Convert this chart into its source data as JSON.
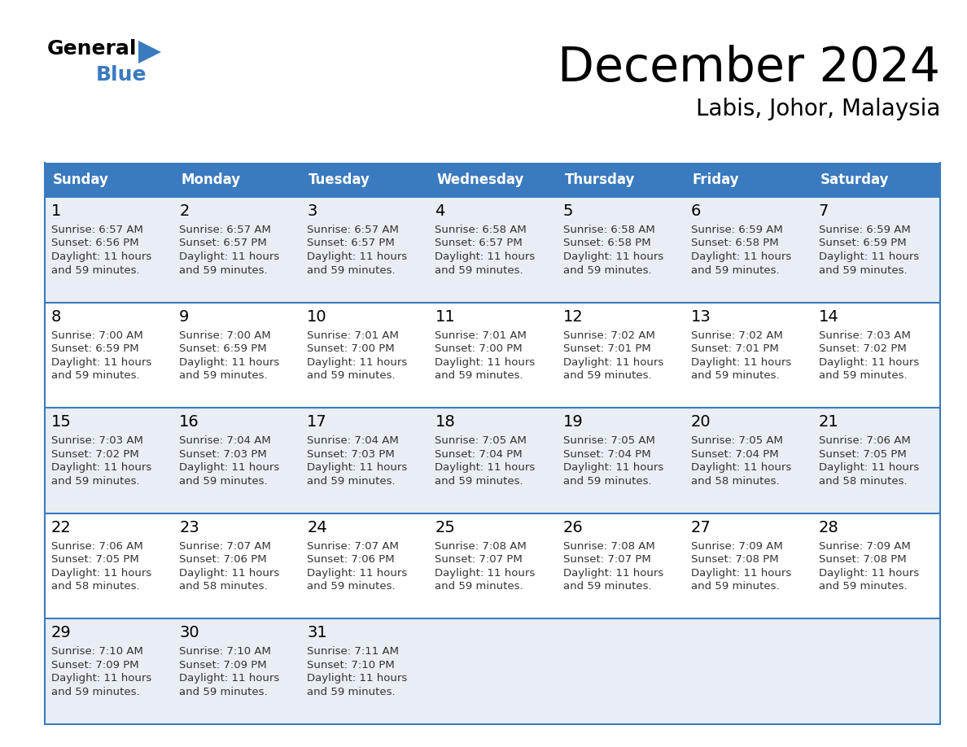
{
  "title": "December 2024",
  "subtitle": "Labis, Johor, Malaysia",
  "header_color": "#3a7abf",
  "header_text_color": "#ffffff",
  "cell_bg_even": "#e8eef4",
  "cell_bg_odd": "#ffffff",
  "border_color": "#3a7abf",
  "text_color": "#333333",
  "day_headers": [
    "Sunday",
    "Monday",
    "Tuesday",
    "Wednesday",
    "Thursday",
    "Friday",
    "Saturday"
  ],
  "days": [
    {
      "day": 1,
      "col": 0,
      "row": 0,
      "sunrise": "6:57 AM",
      "sunset": "6:56 PM",
      "daylight": "11 hours and 59 minutes."
    },
    {
      "day": 2,
      "col": 1,
      "row": 0,
      "sunrise": "6:57 AM",
      "sunset": "6:57 PM",
      "daylight": "11 hours and 59 minutes."
    },
    {
      "day": 3,
      "col": 2,
      "row": 0,
      "sunrise": "6:57 AM",
      "sunset": "6:57 PM",
      "daylight": "11 hours and 59 minutes."
    },
    {
      "day": 4,
      "col": 3,
      "row": 0,
      "sunrise": "6:58 AM",
      "sunset": "6:57 PM",
      "daylight": "11 hours and 59 minutes."
    },
    {
      "day": 5,
      "col": 4,
      "row": 0,
      "sunrise": "6:58 AM",
      "sunset": "6:58 PM",
      "daylight": "11 hours and 59 minutes."
    },
    {
      "day": 6,
      "col": 5,
      "row": 0,
      "sunrise": "6:59 AM",
      "sunset": "6:58 PM",
      "daylight": "11 hours and 59 minutes."
    },
    {
      "day": 7,
      "col": 6,
      "row": 0,
      "sunrise": "6:59 AM",
      "sunset": "6:59 PM",
      "daylight": "11 hours and 59 minutes."
    },
    {
      "day": 8,
      "col": 0,
      "row": 1,
      "sunrise": "7:00 AM",
      "sunset": "6:59 PM",
      "daylight": "11 hours and 59 minutes."
    },
    {
      "day": 9,
      "col": 1,
      "row": 1,
      "sunrise": "7:00 AM",
      "sunset": "6:59 PM",
      "daylight": "11 hours and 59 minutes."
    },
    {
      "day": 10,
      "col": 2,
      "row": 1,
      "sunrise": "7:01 AM",
      "sunset": "7:00 PM",
      "daylight": "11 hours and 59 minutes."
    },
    {
      "day": 11,
      "col": 3,
      "row": 1,
      "sunrise": "7:01 AM",
      "sunset": "7:00 PM",
      "daylight": "11 hours and 59 minutes."
    },
    {
      "day": 12,
      "col": 4,
      "row": 1,
      "sunrise": "7:02 AM",
      "sunset": "7:01 PM",
      "daylight": "11 hours and 59 minutes."
    },
    {
      "day": 13,
      "col": 5,
      "row": 1,
      "sunrise": "7:02 AM",
      "sunset": "7:01 PM",
      "daylight": "11 hours and 59 minutes."
    },
    {
      "day": 14,
      "col": 6,
      "row": 1,
      "sunrise": "7:03 AM",
      "sunset": "7:02 PM",
      "daylight": "11 hours and 59 minutes."
    },
    {
      "day": 15,
      "col": 0,
      "row": 2,
      "sunrise": "7:03 AM",
      "sunset": "7:02 PM",
      "daylight": "11 hours and 59 minutes."
    },
    {
      "day": 16,
      "col": 1,
      "row": 2,
      "sunrise": "7:04 AM",
      "sunset": "7:03 PM",
      "daylight": "11 hours and 59 minutes."
    },
    {
      "day": 17,
      "col": 2,
      "row": 2,
      "sunrise": "7:04 AM",
      "sunset": "7:03 PM",
      "daylight": "11 hours and 59 minutes."
    },
    {
      "day": 18,
      "col": 3,
      "row": 2,
      "sunrise": "7:05 AM",
      "sunset": "7:04 PM",
      "daylight": "11 hours and 59 minutes."
    },
    {
      "day": 19,
      "col": 4,
      "row": 2,
      "sunrise": "7:05 AM",
      "sunset": "7:04 PM",
      "daylight": "11 hours and 59 minutes."
    },
    {
      "day": 20,
      "col": 5,
      "row": 2,
      "sunrise": "7:05 AM",
      "sunset": "7:04 PM",
      "daylight": "11 hours and 58 minutes."
    },
    {
      "day": 21,
      "col": 6,
      "row": 2,
      "sunrise": "7:06 AM",
      "sunset": "7:05 PM",
      "daylight": "11 hours and 58 minutes."
    },
    {
      "day": 22,
      "col": 0,
      "row": 3,
      "sunrise": "7:06 AM",
      "sunset": "7:05 PM",
      "daylight": "11 hours and 58 minutes."
    },
    {
      "day": 23,
      "col": 1,
      "row": 3,
      "sunrise": "7:07 AM",
      "sunset": "7:06 PM",
      "daylight": "11 hours and 58 minutes."
    },
    {
      "day": 24,
      "col": 2,
      "row": 3,
      "sunrise": "7:07 AM",
      "sunset": "7:06 PM",
      "daylight": "11 hours and 59 minutes."
    },
    {
      "day": 25,
      "col": 3,
      "row": 3,
      "sunrise": "7:08 AM",
      "sunset": "7:07 PM",
      "daylight": "11 hours and 59 minutes."
    },
    {
      "day": 26,
      "col": 4,
      "row": 3,
      "sunrise": "7:08 AM",
      "sunset": "7:07 PM",
      "daylight": "11 hours and 59 minutes."
    },
    {
      "day": 27,
      "col": 5,
      "row": 3,
      "sunrise": "7:09 AM",
      "sunset": "7:08 PM",
      "daylight": "11 hours and 59 minutes."
    },
    {
      "day": 28,
      "col": 6,
      "row": 3,
      "sunrise": "7:09 AM",
      "sunset": "7:08 PM",
      "daylight": "11 hours and 59 minutes."
    },
    {
      "day": 29,
      "col": 0,
      "row": 4,
      "sunrise": "7:10 AM",
      "sunset": "7:09 PM",
      "daylight": "11 hours and 59 minutes."
    },
    {
      "day": 30,
      "col": 1,
      "row": 4,
      "sunrise": "7:10 AM",
      "sunset": "7:09 PM",
      "daylight": "11 hours and 59 minutes."
    },
    {
      "day": 31,
      "col": 2,
      "row": 4,
      "sunrise": "7:11 AM",
      "sunset": "7:10 PM",
      "daylight": "11 hours and 59 minutes."
    }
  ]
}
